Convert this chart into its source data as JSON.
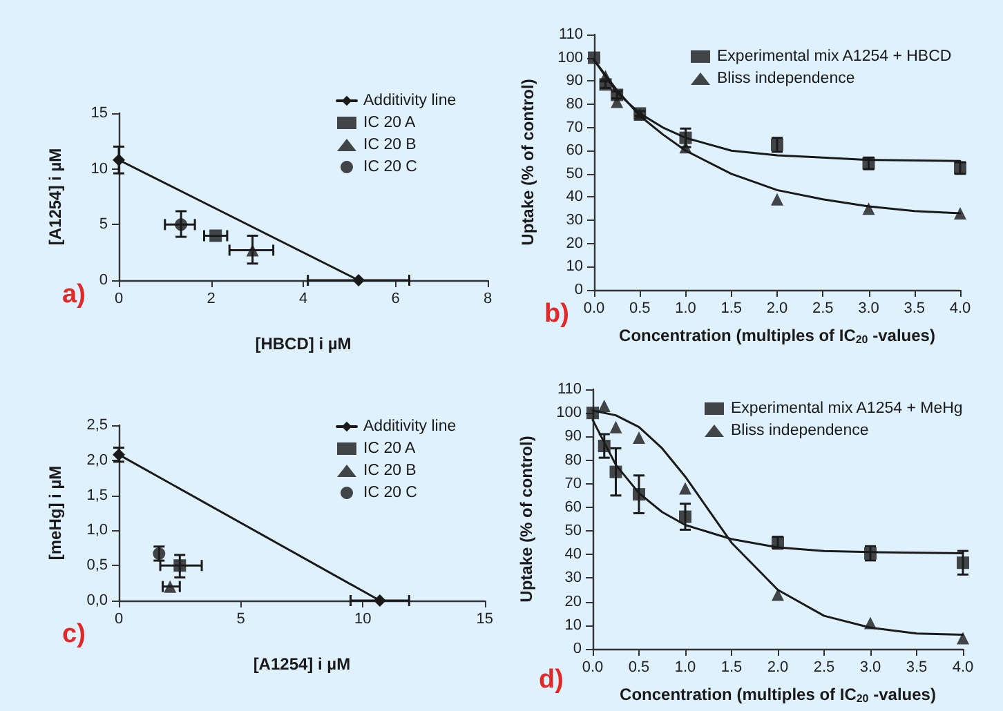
{
  "chart_data": [
    {
      "type": "scatter",
      "xlabel": "[HBCD] i µM",
      "ylabel": "[A1254] i µM",
      "xlim": [
        0,
        8
      ],
      "xticks": [
        0,
        2,
        4,
        6,
        8
      ],
      "ylim": [
        0,
        15
      ],
      "yticks": [
        0,
        5,
        10,
        15
      ],
      "legend": "top right",
      "annotations": [
        "a)"
      ],
      "series": [
        {
          "name": "Additivity line",
          "type": "line",
          "marker": "diamond",
          "color": "#1a1a1a",
          "x": [
            0,
            5.2
          ],
          "values": [
            10.8,
            0
          ],
          "errors": [
            [
              9.6,
              12
            ],
            null
          ],
          "xerrors": [
            null,
            [
              4.1,
              6.3
            ]
          ]
        },
        {
          "name": "IC 20 A",
          "marker": "square",
          "color": "#1a1a1a",
          "x": [
            2.1
          ],
          "values": [
            4
          ],
          "errors": [
            null
          ],
          "xerrors": [
            [
              1.85,
              2.35
            ]
          ]
        },
        {
          "name": "IC 20 B",
          "marker": "triangle",
          "color": "#1a1a1a",
          "x": [
            2.9
          ],
          "values": [
            2.7
          ],
          "errors": [
            [
              1.5,
              4
            ]
          ],
          "xerrors": [
            [
              2.4,
              3.35
            ]
          ]
        },
        {
          "name": "IC 20 C",
          "marker": "circle",
          "color": "#1a1a1a",
          "x": [
            1.35
          ],
          "values": [
            5
          ],
          "errors": [
            [
              3.9,
              6.2
            ]
          ],
          "xerrors": [
            [
              1,
              1.65
            ]
          ]
        }
      ]
    },
    {
      "type": "scatter",
      "xlabel": "Concentration (multiples of IC$_{20}$ -values)",
      "ylabel": "Uptake (% of control)",
      "xlim": [
        0,
        4
      ],
      "xticks": [
        {
          "value": 0,
          "label": "0.0"
        },
        0.5,
        {
          "value": 1,
          "label": "1.0"
        },
        1.5,
        {
          "value": 2,
          "label": "2.0"
        },
        2.5,
        {
          "value": 3,
          "label": "3.0"
        },
        3.5,
        {
          "value": 4,
          "label": "4.0"
        }
      ],
      "ylim": [
        0,
        110
      ],
      "yticks": [
        0,
        10,
        20,
        30,
        40,
        50,
        60,
        70,
        80,
        90,
        100,
        110
      ],
      "legend": "top right",
      "annotations": [
        "b)"
      ],
      "x": [
        0,
        0.125,
        0.25,
        0.5,
        1,
        2,
        3,
        4
      ],
      "series": [
        {
          "name": "Experimental mix A1254 + HBCD",
          "marker": "square",
          "color": "#1a1a1a",
          "values": [
            100,
            88.5,
            84,
            76,
            65.5,
            62.5,
            54.5,
            52.5
          ],
          "errors": [
            null,
            1.5,
            1.5,
            1,
            4,
            3,
            2.5,
            2.5
          ]
        },
        {
          "name": "Bliss independence",
          "marker": "triangle",
          "color": "#1a1a1a",
          "values": [
            null,
            92,
            81,
            75.5,
            61.5,
            39,
            35,
            33
          ]
        },
        {
          "type": "line",
          "marker": "none",
          "color": "#1a1a1a",
          "x": [
            0,
            0.25,
            0.5,
            0.75,
            1,
            1.5,
            2,
            2.5,
            3,
            4
          ],
          "values": [
            99,
            85,
            76,
            70,
            65.5,
            60,
            58,
            57,
            56,
            55.5
          ]
        },
        {
          "type": "line",
          "marker": "none",
          "color": "#1a1a1a",
          "x": [
            0,
            0.25,
            0.5,
            0.75,
            1,
            1.5,
            2,
            2.5,
            3,
            3.5,
            4
          ],
          "values": [
            99,
            86,
            75,
            67,
            60,
            50,
            43,
            39,
            36,
            34,
            33
          ]
        }
      ]
    },
    {
      "type": "scatter",
      "xlabel": "[A1254] i µM",
      "ylabel": "[meHg] i µM",
      "xlim": [
        0,
        15
      ],
      "xticks": [
        0,
        5,
        10,
        15
      ],
      "ylim": [
        0,
        2.5
      ],
      "yticks": [
        {
          "value": 0,
          "label": "0,0"
        },
        {
          "value": 0.5,
          "label": "0,5"
        },
        {
          "value": 1,
          "label": "1,0"
        },
        {
          "value": 1.5,
          "label": "1,5"
        },
        {
          "value": 2,
          "label": "2,0"
        },
        {
          "value": 2.5,
          "label": "2,5"
        }
      ],
      "legend": "top right",
      "annotations": [
        "c)"
      ],
      "series": [
        {
          "name": "Additivity line",
          "type": "line",
          "marker": "diamond",
          "color": "#1a1a1a",
          "x": [
            0,
            10.7
          ],
          "values": [
            2.08,
            0
          ],
          "errors": [
            [
              1.98,
              2.18
            ],
            null
          ],
          "xerrors": [
            null,
            [
              9.5,
              11.9
            ]
          ]
        },
        {
          "name": "IC 20 A",
          "marker": "square",
          "color": "#1a1a1a",
          "x": [
            2.5
          ],
          "values": [
            0.5
          ],
          "errors": [
            [
              0.33,
              0.65
            ]
          ],
          "xerrors": [
            [
              1.7,
              3.4
            ]
          ]
        },
        {
          "name": "IC 20 B",
          "marker": "triangle",
          "color": "#1a1a1a",
          "x": [
            2.1
          ],
          "values": [
            0.2
          ],
          "errors": [
            null
          ],
          "xerrors": [
            [
              1.8,
              2.5
            ]
          ]
        },
        {
          "name": "IC 20 C",
          "marker": "circle",
          "color": "#1a1a1a",
          "x": [
            1.65
          ],
          "values": [
            0.67
          ],
          "errors": [
            [
              0.57,
              0.77
            ]
          ]
        }
      ]
    },
    {
      "type": "scatter",
      "xlabel": "Concentration (multiples of IC$_{20}$ -values)",
      "ylabel": "Uptake (% of control)",
      "xlim": [
        0,
        4
      ],
      "xticks": [
        {
          "value": 0,
          "label": "0.0"
        },
        0.5,
        {
          "value": 1,
          "label": "1.0"
        },
        1.5,
        {
          "value": 2,
          "label": "2.0"
        },
        2.5,
        {
          "value": 3,
          "label": "3.0"
        },
        3.5,
        {
          "value": 4,
          "label": "4.0"
        }
      ],
      "ylim": [
        0,
        110
      ],
      "yticks": [
        0,
        10,
        20,
        30,
        40,
        50,
        60,
        70,
        80,
        90,
        100,
        110
      ],
      "legend": "top right",
      "annotations": [
        "d)"
      ],
      "x": [
        0,
        0.125,
        0.25,
        0.5,
        1,
        2,
        3,
        4
      ],
      "series": [
        {
          "name": "Experimental mix A1254 + MeHg",
          "marker": "square",
          "color": "#1a1a1a",
          "values": [
            100,
            86,
            75,
            65.5,
            56,
            45,
            40.5,
            36.5
          ],
          "errors": [
            null,
            5,
            10,
            8,
            5.5,
            2.5,
            3,
            5
          ]
        },
        {
          "name": "Bliss independence",
          "marker": "triangle",
          "color": "#1a1a1a",
          "values": [
            null,
            103,
            94,
            89.5,
            68,
            23,
            11,
            4.5
          ]
        },
        {
          "type": "line",
          "marker": "none",
          "color": "#1a1a1a",
          "x": [
            0,
            0.25,
            0.5,
            0.75,
            1,
            1.5,
            2,
            2.5,
            3,
            4
          ],
          "values": [
            97,
            78,
            66,
            58,
            52.5,
            46.5,
            43,
            41.5,
            41,
            40.5
          ]
        },
        {
          "type": "line",
          "marker": "none",
          "color": "#1a1a1a",
          "x": [
            0,
            0.25,
            0.5,
            0.75,
            1,
            1.25,
            1.5,
            2,
            2.5,
            3,
            3.5,
            4
          ],
          "values": [
            101,
            99,
            94,
            85,
            73,
            59,
            45,
            25,
            14,
            9,
            6.5,
            6
          ]
        }
      ]
    }
  ]
}
